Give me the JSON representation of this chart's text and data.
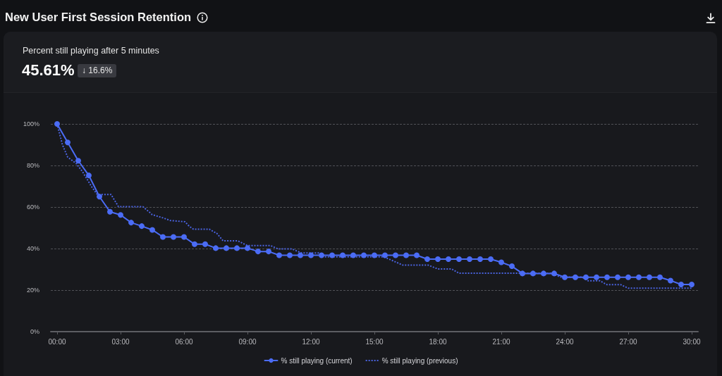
{
  "chart_data": {
    "type": "line",
    "title": "New User First Session Retention",
    "subtitle": "Percent still playing after 5 minutes",
    "annotations": [
      "45.61%",
      "↓ 16.6%"
    ],
    "xlim": [
      -0.3,
      30.3
    ],
    "xticks": [
      {
        "value": 0,
        "label": "00:00"
      },
      {
        "value": 3,
        "label": "03:00"
      },
      {
        "value": 6,
        "label": "06:00"
      },
      {
        "value": 9,
        "label": "09:00"
      },
      {
        "value": 12,
        "label": "12:00"
      },
      {
        "value": 15,
        "label": "15:00"
      },
      {
        "value": 18,
        "label": "18:00"
      },
      {
        "value": 21,
        "label": "21:00"
      },
      {
        "value": 24,
        "label": "24:00"
      },
      {
        "value": 27,
        "label": "27:00"
      },
      {
        "value": 30,
        "label": "30:00"
      }
    ],
    "ylim": [
      0,
      100
    ],
    "yticks": [
      {
        "value": 0,
        "label": "0%"
      },
      {
        "value": 20,
        "label": "20%"
      },
      {
        "value": 40,
        "label": "40%"
      },
      {
        "value": 60,
        "label": "60%"
      },
      {
        "value": 80,
        "label": "80%"
      },
      {
        "value": 100,
        "label": "100%"
      }
    ],
    "grid": "y",
    "legend": "bottom",
    "series": [
      {
        "name": "% still playing (current)",
        "color": "#4b6cf5",
        "marker": "circle",
        "line_style": "solid",
        "x": [
          0,
          0.5,
          1,
          1.5,
          2,
          2.5,
          3,
          3.5,
          4,
          4.5,
          5,
          5.5,
          6,
          6.5,
          7,
          7.5,
          8,
          8.5,
          9,
          9.5,
          10,
          10.5,
          11,
          11.5,
          12,
          12.5,
          13,
          13.5,
          14,
          14.5,
          15,
          15.5,
          16,
          16.5,
          17,
          17.5,
          18,
          18.5,
          19,
          19.5,
          20,
          20.5,
          21,
          21.5,
          22,
          22.5,
          23,
          23.5,
          24,
          24.5,
          25,
          25.5,
          26,
          26.5,
          27,
          27.5,
          28,
          28.5,
          29,
          29.5,
          30
        ],
        "values": [
          100,
          91.1,
          82.3,
          75.2,
          65,
          57.7,
          56.2,
          52.5,
          50.8,
          49,
          45.6,
          45.6,
          45.6,
          42.1,
          42.1,
          40.2,
          40.2,
          40.2,
          40.2,
          38.6,
          38.6,
          36.8,
          36.8,
          36.8,
          36.8,
          36.8,
          36.8,
          36.8,
          36.8,
          36.8,
          36.8,
          36.8,
          36.8,
          36.8,
          36.8,
          34.9,
          34.9,
          34.9,
          34.9,
          34.9,
          34.9,
          34.9,
          33.4,
          31.5,
          28,
          28,
          28,
          28,
          26.2,
          26.2,
          26.2,
          26.2,
          26.2,
          26.2,
          26.2,
          26.2,
          26.2,
          26.2,
          24.6,
          22.7,
          22.7
        ]
      },
      {
        "name": "% still playing (previous)",
        "color": "#4a63e0",
        "marker": "none",
        "line_style": "dotted",
        "x": [
          0,
          0.25,
          0.5,
          0.9,
          1.2,
          1.65,
          1.9,
          2.55,
          2.9,
          4.05,
          4.25,
          4.5,
          5,
          5.35,
          6.05,
          6.25,
          6.45,
          7.2,
          7.55,
          7.85,
          8.55,
          8.8,
          9,
          10.1,
          10.45,
          11.1,
          11.55,
          12.35,
          12.65,
          15.45,
          15.9,
          16.35,
          17.55,
          18,
          18.65,
          19,
          23.35,
          23.8,
          24.8,
          25.1,
          25.65,
          26,
          26.65,
          27,
          30
        ],
        "values": [
          100,
          90,
          84,
          81,
          77,
          69.5,
          66,
          66,
          60.2,
          60.2,
          58.5,
          56.3,
          54.8,
          53.5,
          52.9,
          50.7,
          49.3,
          49.3,
          47.3,
          43.7,
          43.7,
          42.4,
          41.4,
          41.4,
          39.8,
          39.8,
          37.9,
          37.9,
          36,
          36,
          34,
          32,
          32,
          30.2,
          30.2,
          28.1,
          28.1,
          26.3,
          26.3,
          24.5,
          24.5,
          22.6,
          22.6,
          20.9,
          20.9
        ]
      }
    ]
  }
}
